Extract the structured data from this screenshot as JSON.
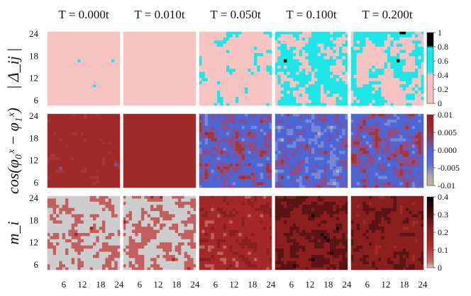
{
  "chart_data": {
    "type": "heatmap",
    "grid_size": 24,
    "column_titles": [
      "T = 0.000t",
      "T = 0.010t",
      "T = 0.050t",
      "T = 0.100t",
      "T = 0.200t"
    ],
    "x_tick_labels": [
      "6",
      "12",
      "18",
      "24"
    ],
    "y_tick_labels": [
      "24",
      "18",
      "12",
      "6"
    ],
    "rows": [
      {
        "label": "| Δ_ij |",
        "colorbar_ticks": [
          "1",
          "0.8",
          "0.6",
          "0.4",
          "0.2",
          "0"
        ],
        "range": [
          0,
          1
        ],
        "colors": [
          "#f7c0c0",
          "#f7c0c0",
          "#f7c0c0",
          "#19e8e8",
          "#000000"
        ],
        "description_levels": [
          0.0,
          0.0,
          0.05,
          0.4,
          0.6
        ],
        "fraction_high": [
          0.12,
          0.1,
          0.3,
          0.55,
          0.5
        ]
      },
      {
        "label": "cos(φ₀ˣ − φ₁ˣ)",
        "colorbar_ticks": [
          "0.01",
          "0.005",
          "0.000",
          "-0.005",
          "-0.01"
        ],
        "range": [
          -0.01,
          0.01
        ],
        "colors": [
          "#c8b89a",
          "#4a63d6",
          "#9b2b2b"
        ],
        "mean_value": [
          0.006,
          0.008,
          -0.001,
          -0.002,
          -0.001
        ]
      },
      {
        "label": "m_i",
        "colorbar_ticks": [
          "0.4",
          "0.3",
          "0.2",
          "0.1",
          "0"
        ],
        "range": [
          0,
          0.4
        ],
        "colors": [
          "#c8c8c8",
          "#b84a4a",
          "#a32626",
          "#000000"
        ],
        "mean_value": [
          0.01,
          0.015,
          0.12,
          0.22,
          0.2
        ]
      }
    ]
  }
}
